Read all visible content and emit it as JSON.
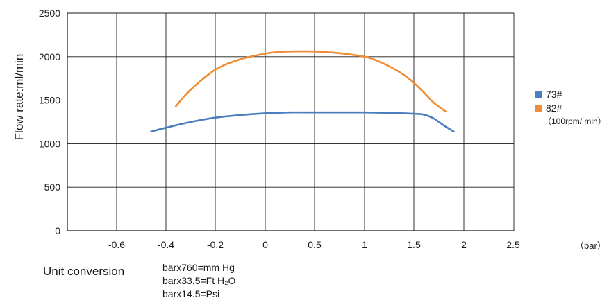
{
  "chart_data": {
    "type": "line",
    "title": "",
    "xlabel": "(bar)",
    "ylabel": "Flow rate:ml/min",
    "xlim": [
      -0.75,
      2.5
    ],
    "ylim": [
      0,
      2500
    ],
    "x_ticks": [
      -0.6,
      -0.4,
      -0.2,
      0,
      0.5,
      1,
      1.5,
      2,
      2.5
    ],
    "x_tick_labels": [
      "-0.6",
      "-0.4",
      "-0.2",
      "0",
      "0.5",
      "1",
      "1.5",
      "2",
      "2.5"
    ],
    "y_ticks": [
      0,
      500,
      1000,
      1500,
      2000,
      2500
    ],
    "y_tick_labels": [
      "0",
      "500",
      "1000",
      "1500",
      "2000",
      "2500"
    ],
    "grid": true,
    "legend_position": "right",
    "series": [
      {
        "name": "73#",
        "color": "#4a7ebf",
        "x": [
          -0.46,
          -0.4,
          -0.3,
          -0.2,
          -0.1,
          0,
          0.25,
          0.5,
          0.75,
          1,
          1.25,
          1.5,
          1.6,
          1.7,
          1.8,
          1.9
        ],
        "y": [
          1140,
          1185,
          1250,
          1300,
          1330,
          1350,
          1360,
          1360,
          1360,
          1360,
          1355,
          1345,
          1335,
          1290,
          1210,
          1140
        ]
      },
      {
        "name": "82#",
        "color": "#f08c33",
        "x": [
          -0.36,
          -0.3,
          -0.2,
          -0.1,
          0,
          0.1,
          0.25,
          0.5,
          0.75,
          1,
          1.1,
          1.25,
          1.4,
          1.5,
          1.6,
          1.7,
          1.82
        ],
        "y": [
          1430,
          1620,
          1850,
          1970,
          2035,
          2050,
          2060,
          2060,
          2040,
          2000,
          1965,
          1890,
          1790,
          1700,
          1590,
          1470,
          1370
        ]
      }
    ],
    "legend_note": "（100rpm/ min）",
    "unit_label": "（bar）"
  },
  "conversion": {
    "title": "Unit conversion",
    "lines": [
      "barx760=mm Hg",
      "barx33.5=Ft H₂O",
      "barx14.5=Psi"
    ]
  }
}
